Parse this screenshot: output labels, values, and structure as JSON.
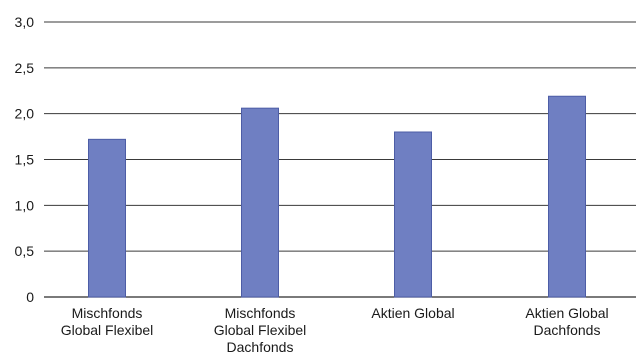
{
  "chart_data": {
    "type": "bar",
    "categories": [
      [
        "Mischfonds",
        "Global Flexibel"
      ],
      [
        "Mischfonds",
        "Global Flexibel",
        "Dachfonds"
      ],
      [
        "Aktien Global"
      ],
      [
        "Aktien Global",
        "Dachfonds"
      ]
    ],
    "values": [
      1.72,
      2.06,
      1.8,
      2.19
    ],
    "y_ticks": [
      "0",
      "0,5",
      "1,0",
      "1,5",
      "2,0",
      "2,5",
      "3,0"
    ],
    "ylim": [
      0,
      3.0
    ],
    "grid": true,
    "bar_color": "#6f7fc2",
    "bar_edge_color": "#4d5da6"
  }
}
